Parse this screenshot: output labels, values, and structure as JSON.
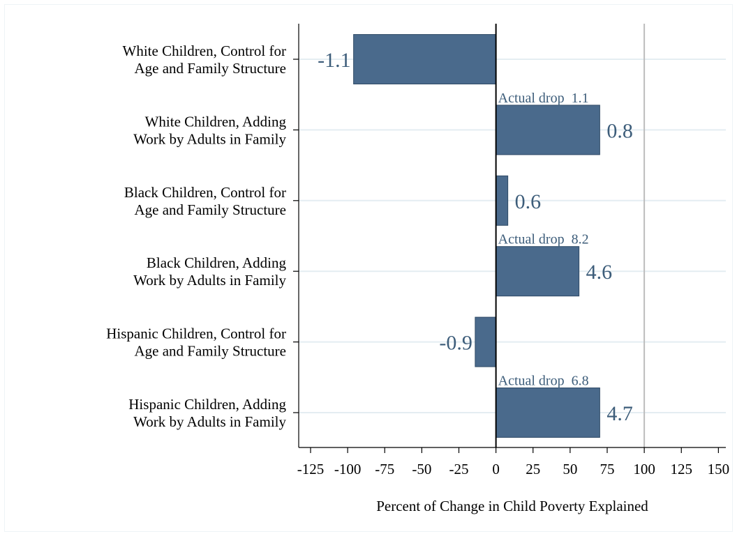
{
  "chart_data": {
    "type": "bar",
    "orientation": "horizontal",
    "categories": [
      [
        "White Children, Control for",
        "Age and Family Structure"
      ],
      [
        "White Children, Adding",
        "Work by Adults in Family"
      ],
      [
        "Black Children, Control for",
        "Age and Family Structure"
      ],
      [
        "Black Children, Adding",
        "Work by Adults in Family"
      ],
      [
        "Hispanic Children, Control for",
        "Age and Family Structure"
      ],
      [
        "Hispanic Children, Adding",
        "Work by Adults in Family"
      ]
    ],
    "values": [
      -96,
      70,
      8,
      56,
      -14,
      70
    ],
    "value_labels": [
      "-1.1",
      "0.8",
      "0.6",
      "4.6",
      "-0.9",
      "4.7"
    ],
    "annotations": [
      {
        "category_index": 1,
        "text": "Actual drop  1.1"
      },
      {
        "category_index": 3,
        "text": "Actual drop  8.2"
      },
      {
        "category_index": 5,
        "text": "Actual drop  6.8"
      }
    ],
    "xlabel": "Percent of Change in Child Poverty Explained",
    "ylabel": "",
    "title": "",
    "xlim": [
      -133,
      155
    ],
    "xticks": [
      -125,
      -100,
      -75,
      -50,
      -25,
      0,
      25,
      50,
      75,
      100,
      125,
      150
    ],
    "reference_lines": [
      0,
      100
    ],
    "grid": true,
    "colors": {
      "bar": "#4a6a8c",
      "bar_edge": "#2f4a66",
      "label": "#3d5d7a",
      "gridline": "#e4edf2",
      "zero_line": "#000000",
      "ref_line": "#bcbcbc"
    }
  }
}
